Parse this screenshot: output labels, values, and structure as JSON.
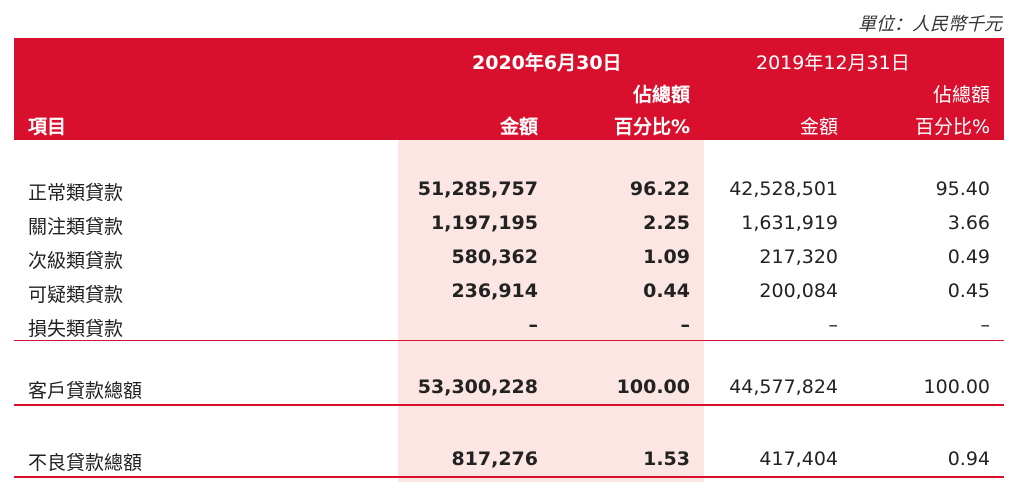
{
  "unit_note": "單位：人民幣千元",
  "header": {
    "period1": "2020年6月30日",
    "period2": "2019年12月31日",
    "col_item": "項目",
    "col_amount1": "金額",
    "col_pct_line1_a": "佔總額",
    "col_pct_line2_a": "百分比%",
    "col_amount2": "金額",
    "col_pct_line1_b": "佔總額",
    "col_pct_line2_b": "百分比%"
  },
  "rows": [
    {
      "label": "正常類貸款",
      "amt_2020": "51,285,757",
      "pct_2020": "96.22",
      "amt_2019": "42,528,501",
      "pct_2019": "95.40"
    },
    {
      "label": "關注類貸款",
      "amt_2020": "1,197,195",
      "pct_2020": "2.25",
      "amt_2019": "1,631,919",
      "pct_2019": "3.66"
    },
    {
      "label": "次級類貸款",
      "amt_2020": "580,362",
      "pct_2020": "1.09",
      "amt_2019": "217,320",
      "pct_2019": "0.49"
    },
    {
      "label": "可疑類貸款",
      "amt_2020": "236,914",
      "pct_2020": "0.44",
      "amt_2019": "200,084",
      "pct_2019": "0.45"
    },
    {
      "label": "損失類貸款",
      "amt_2020": "–",
      "pct_2020": "–",
      "amt_2019": "–",
      "pct_2019": "–"
    }
  ],
  "total": {
    "label": "客戶貸款總額",
    "amt_2020": "53,300,228",
    "pct_2020": "100.00",
    "amt_2019": "44,577,824",
    "pct_2019": "100.00"
  },
  "npl": {
    "label": "不良貸款總額",
    "amt_2020": "817,276",
    "pct_2020": "1.53",
    "amt_2019": "417,404",
    "pct_2019": "0.94"
  },
  "colors": {
    "accent": "#d8102e",
    "highlight": "#fce6e3"
  }
}
